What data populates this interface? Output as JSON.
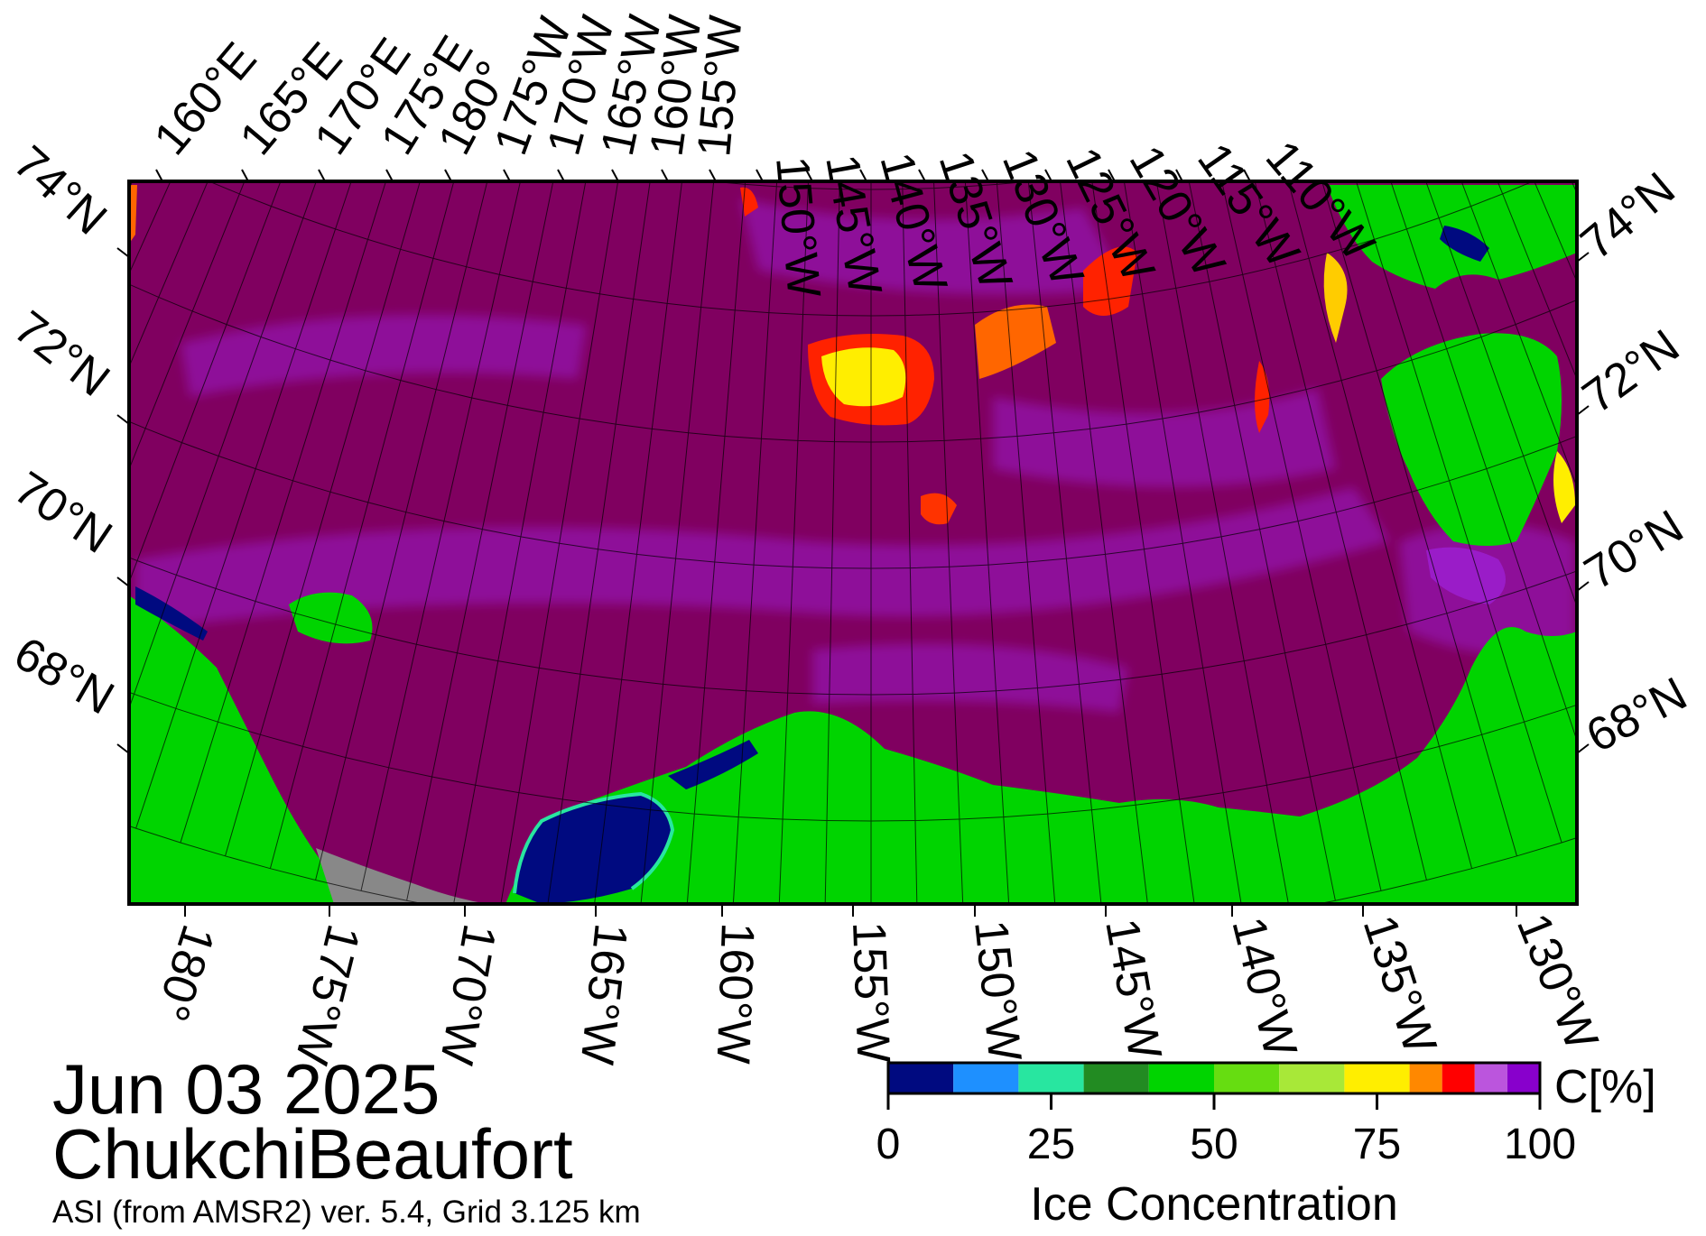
{
  "date": "Jun 03 2025",
  "region": "ChukchiBeaufort",
  "source": "ASI (from AMSR2) ver. 5.4,  Grid 3.125 km",
  "colorbar": {
    "title": "Ice Concentration",
    "unit": "C[%]",
    "tick_labels": [
      "0",
      "25",
      "50",
      "75",
      "100"
    ],
    "ticks": [
      0,
      25,
      50,
      75,
      100
    ],
    "range": [
      0,
      100
    ],
    "bins": [
      {
        "from": 0,
        "to": 10,
        "color": "#000a80"
      },
      {
        "from": 10,
        "to": 20,
        "color": "#1e90ff"
      },
      {
        "from": 20,
        "to": 30,
        "color": "#28e6a0"
      },
      {
        "from": 30,
        "to": 40,
        "color": "#228b22"
      },
      {
        "from": 40,
        "to": 50,
        "color": "#00d400"
      },
      {
        "from": 50,
        "to": 60,
        "color": "#66dd11"
      },
      {
        "from": 60,
        "to": 70,
        "color": "#a8e838"
      },
      {
        "from": 70,
        "to": 80,
        "color": "#ffee00"
      },
      {
        "from": 80,
        "to": 85,
        "color": "#ff8800"
      },
      {
        "from": 85,
        "to": 90,
        "color": "#ff0000"
      },
      {
        "from": 90,
        "to": 95,
        "color": "#bb55dd"
      },
      {
        "from": 95,
        "to": 100,
        "color": "#8800cc"
      }
    ]
  },
  "colors": {
    "ice": "#800060",
    "ice_light": "#9a1cc8",
    "land": "#00d400",
    "missing": "#888888",
    "open_water": "#000a80",
    "high_conc": "#ffee00",
    "mid_conc": "#ff2200"
  },
  "top_longitude_labels": [
    "160°E",
    "165°E",
    "170°E",
    "175°E",
    "180°",
    "175°W",
    "170°W",
    "165°W",
    "160°W",
    "155°W",
    "150°W",
    "145°W",
    "140°W",
    "135°W",
    "130°W",
    "125°W",
    "120°W",
    "115°W",
    "110°W"
  ],
  "bottom_longitude_labels": [
    "180°",
    "175°W",
    "170°W",
    "165°W",
    "160°W",
    "155°W",
    "150°W",
    "145°W",
    "140°W",
    "135°W",
    "130°W"
  ],
  "left_latitude_labels": [
    "74°N",
    "72°N",
    "70°N",
    "68°N"
  ],
  "right_latitude_labels": [
    "74°N",
    "72°N",
    "70°N",
    "68°N"
  ]
}
